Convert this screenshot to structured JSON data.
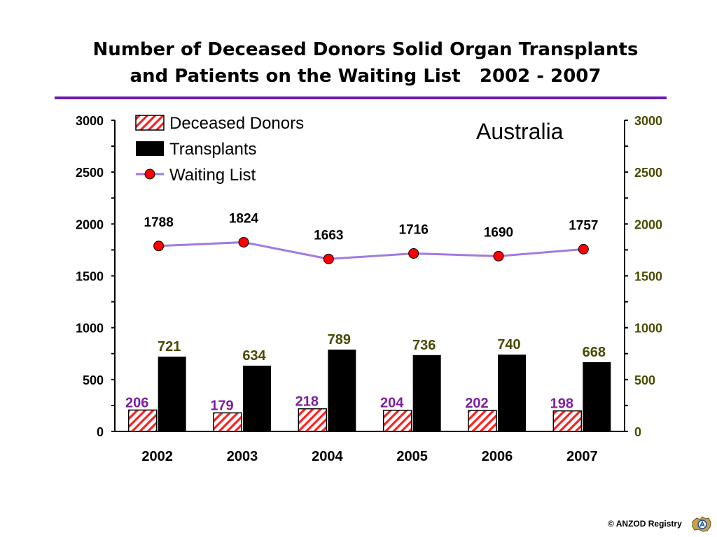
{
  "title": {
    "line1": "Number of Deceased Donors Solid Organ Transplants",
    "line2": "and Patients on the Waiting List   2002 - 2007"
  },
  "region_label": "Australia",
  "footer": {
    "copyright": "© ANZOD Registry"
  },
  "colors": {
    "rule": "#6a1bb3",
    "donors_hatch": "#ff2020",
    "donor_label": "#7b1fa2",
    "transplants": "#000000",
    "transplant_label": "#4a4a00",
    "waiting_line": "#a07be0",
    "waiting_marker": "#ff0000",
    "right_axis_text": "#4a4a00"
  },
  "chart_data": {
    "type": "bar",
    "categories": [
      "2002",
      "2003",
      "2004",
      "2005",
      "2006",
      "2007"
    ],
    "series": [
      {
        "name": "Deceased Donors",
        "kind": "bar",
        "pattern": "hatched",
        "values": [
          206,
          179,
          218,
          204,
          202,
          198
        ]
      },
      {
        "name": "Transplants",
        "kind": "bar",
        "pattern": "solid",
        "values": [
          721,
          634,
          789,
          736,
          740,
          668
        ]
      },
      {
        "name": "Waiting List",
        "kind": "line",
        "marker": "circle",
        "values": [
          1788,
          1824,
          1663,
          1716,
          1690,
          1757
        ]
      }
    ],
    "ylim": [
      0,
      3000
    ],
    "y_ticks": [
      0,
      500,
      1000,
      1500,
      2000,
      2500,
      3000
    ],
    "y_ticks_right": [
      0,
      500,
      1000,
      1500,
      2000,
      2500,
      3000
    ],
    "title": "",
    "xlabel": "",
    "ylabel": "",
    "grid": false,
    "legend": "top-left"
  }
}
